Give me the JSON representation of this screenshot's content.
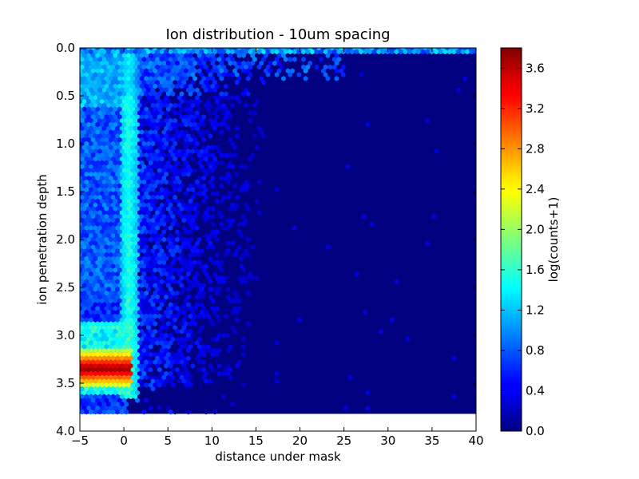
{
  "chart_data": {
    "type": "heatmap",
    "subtype": "hexbin",
    "title": "Ion distribution - 10um spacing",
    "xlabel": "distance under mask",
    "ylabel": "ion penetration depth",
    "xlim": [
      -5,
      40
    ],
    "ylim": [
      4.0,
      0.0
    ],
    "y_inverted": true,
    "xticks": [
      -5,
      0,
      5,
      10,
      15,
      20,
      25,
      30,
      35,
      40
    ],
    "xtick_labels": [
      "−5",
      "0",
      "5",
      "10",
      "15",
      "20",
      "25",
      "30",
      "35",
      "40"
    ],
    "yticks": [
      0.0,
      0.5,
      1.0,
      1.5,
      2.0,
      2.5,
      3.0,
      3.5,
      4.0
    ],
    "ytick_labels": [
      "0.0",
      "0.5",
      "1.0",
      "1.5",
      "2.0",
      "2.5",
      "3.0",
      "3.5",
      "4.0"
    ],
    "data_extent": {
      "x": [
        -5,
        40
      ],
      "y": [
        0.0,
        3.82
      ]
    },
    "colormap": "jet",
    "colorbar": {
      "label": "log(counts+1)",
      "range": [
        0.0,
        3.8
      ],
      "ticks": [
        0.0,
        0.4,
        0.8,
        1.2,
        1.6,
        2.0,
        2.4,
        2.8,
        3.2,
        3.6
      ],
      "tick_labels": [
        "0.0",
        "0.4",
        "0.8",
        "1.2",
        "1.6",
        "2.0",
        "2.4",
        "2.8",
        "3.2",
        "3.6"
      ]
    },
    "features": [
      {
        "name": "background",
        "value": 0.0
      },
      {
        "name": "surface band",
        "x": [
          -5,
          40
        ],
        "y": [
          0.0,
          0.05
        ],
        "value": 1.0
      },
      {
        "name": "vertical stripe near mask edge",
        "x": [
          -0.5,
          1.5
        ],
        "y": [
          0.0,
          3.65
        ],
        "value": 1.6
      },
      {
        "name": "scattered halo",
        "x": [
          -5,
          20
        ],
        "y": [
          0.0,
          3.5
        ],
        "value": 0.4
      },
      {
        "name": "peak band",
        "x": [
          -5,
          1
        ],
        "y": [
          3.25,
          3.5
        ],
        "value": 3.6
      }
    ]
  },
  "colors": {
    "background": "#ffffff",
    "frame": "#000000",
    "jet_low": "#00007f",
    "jet_high": "#7f0000"
  }
}
